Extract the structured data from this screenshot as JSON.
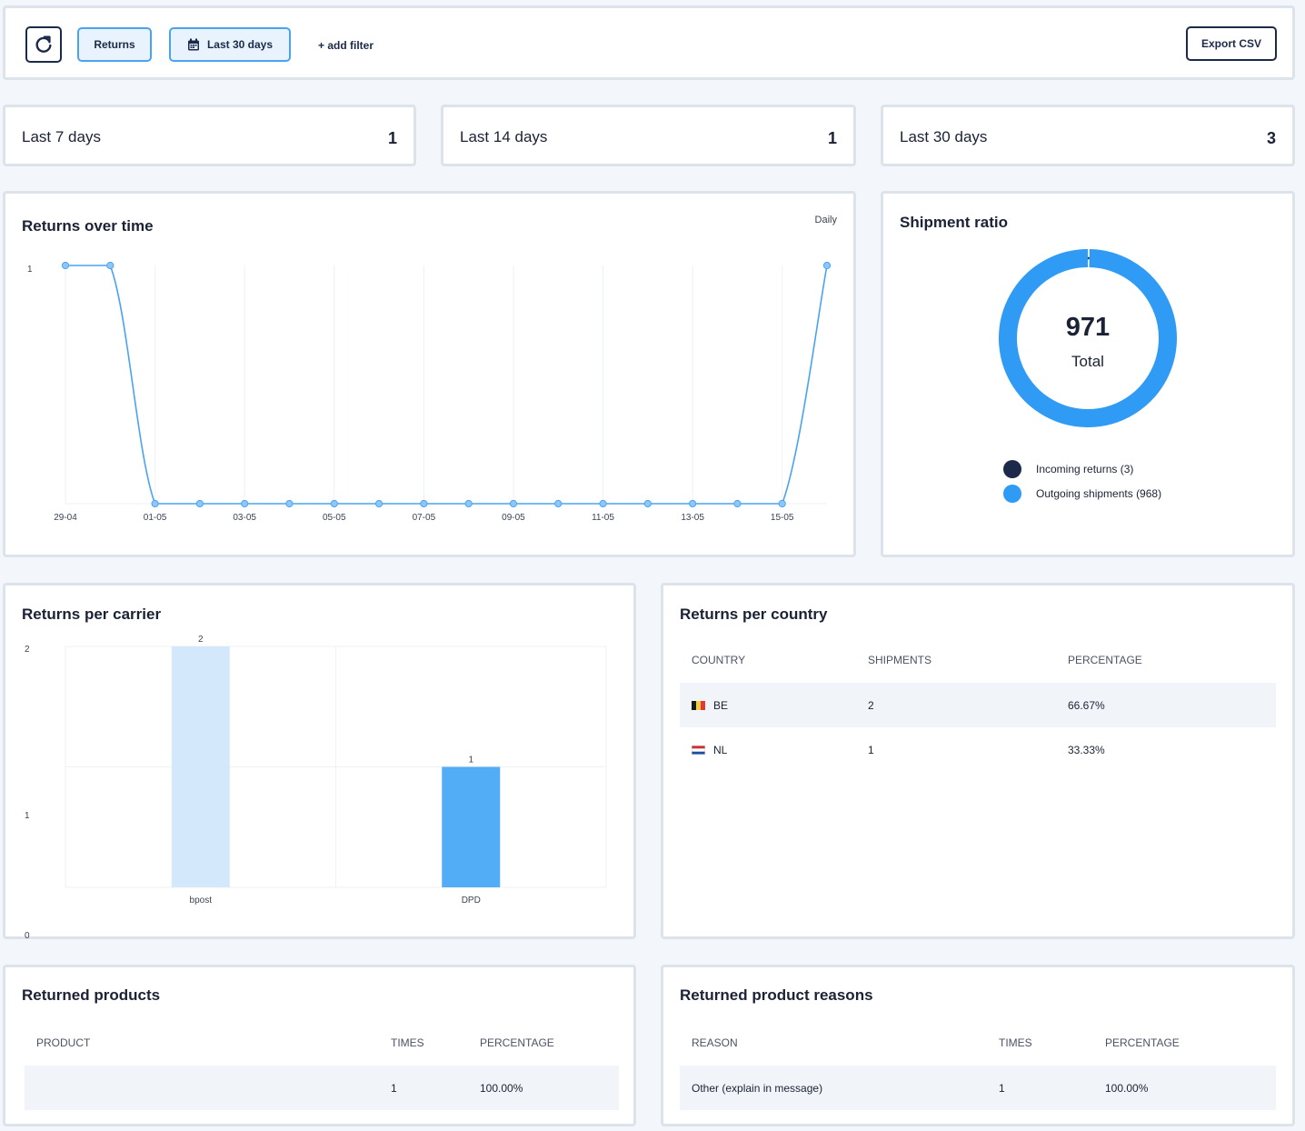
{
  "toolbar": {
    "returns_label": "Returns",
    "date_label": "Last 30 days",
    "add_filter_label": "+ add filter",
    "export_label": "Export CSV"
  },
  "stats": [
    {
      "label": "Last 7 days",
      "value": "1"
    },
    {
      "label": "Last 14 days",
      "value": "1"
    },
    {
      "label": "Last 30 days",
      "value": "3"
    }
  ],
  "returns_over_time": {
    "title": "Returns over time",
    "granularity": "Daily"
  },
  "shipment_ratio": {
    "title": "Shipment ratio",
    "total_value": "971",
    "total_label": "Total",
    "legend": [
      {
        "label": "Incoming returns (3)",
        "color": "#1b2a4a"
      },
      {
        "label": "Outgoing shipments (968)",
        "color": "#2f9bf5"
      }
    ]
  },
  "carrier": {
    "title": "Returns per carrier"
  },
  "country": {
    "title": "Returns per country",
    "headers": [
      "COUNTRY",
      "SHIPMENTS",
      "PERCENTAGE"
    ],
    "rows": [
      {
        "country": "BE",
        "shipments": "2",
        "percentage": "66.67%"
      },
      {
        "country": "NL",
        "shipments": "1",
        "percentage": "33.33%"
      }
    ]
  },
  "products": {
    "title": "Returned products",
    "headers": [
      "PRODUCT",
      "TIMES",
      "PERCENTAGE"
    ],
    "rows": [
      {
        "product": "",
        "times": "1",
        "percentage": "100.00%"
      }
    ]
  },
  "reasons": {
    "title": "Returned product reasons",
    "headers": [
      "REASON",
      "TIMES",
      "PERCENTAGE"
    ],
    "rows": [
      {
        "reason": "Other (explain in message)",
        "times": "1",
        "percentage": "100.00%"
      }
    ]
  },
  "chart_data": [
    {
      "type": "line",
      "title": "Returns over time",
      "x": [
        "29-04",
        "30-04",
        "01-05",
        "02-05",
        "03-05",
        "04-05",
        "05-05",
        "06-05",
        "07-05",
        "08-05",
        "09-05",
        "10-05",
        "11-05",
        "12-05",
        "13-05",
        "14-05",
        "15-05",
        "16-05"
      ],
      "x_tick_labels": [
        "29-04",
        "01-05",
        "03-05",
        "05-05",
        "07-05",
        "09-05",
        "11-05",
        "13-05",
        "15-05"
      ],
      "values": [
        1,
        1,
        0,
        0,
        0,
        0,
        0,
        0,
        0,
        0,
        0,
        0,
        0,
        0,
        0,
        0,
        0,
        1
      ],
      "ylim": [
        0,
        1
      ],
      "y_tick_labels": [
        "1"
      ],
      "color": "#4aa3f0"
    },
    {
      "type": "pie",
      "title": "Shipment ratio",
      "categories": [
        "Incoming returns",
        "Outgoing shipments"
      ],
      "values": [
        3,
        968
      ],
      "colors": [
        "#1b2a4a",
        "#2f9bf5"
      ]
    },
    {
      "type": "bar",
      "title": "Returns per carrier",
      "categories": [
        "bpost",
        "DPD"
      ],
      "values": [
        2,
        1
      ],
      "data_labels": [
        "2",
        "1"
      ],
      "ylim": [
        0,
        2
      ],
      "y_tick_labels": [
        "2",
        "1",
        "0"
      ],
      "colors": [
        "#d3e9fb",
        "#52acf6"
      ]
    }
  ]
}
